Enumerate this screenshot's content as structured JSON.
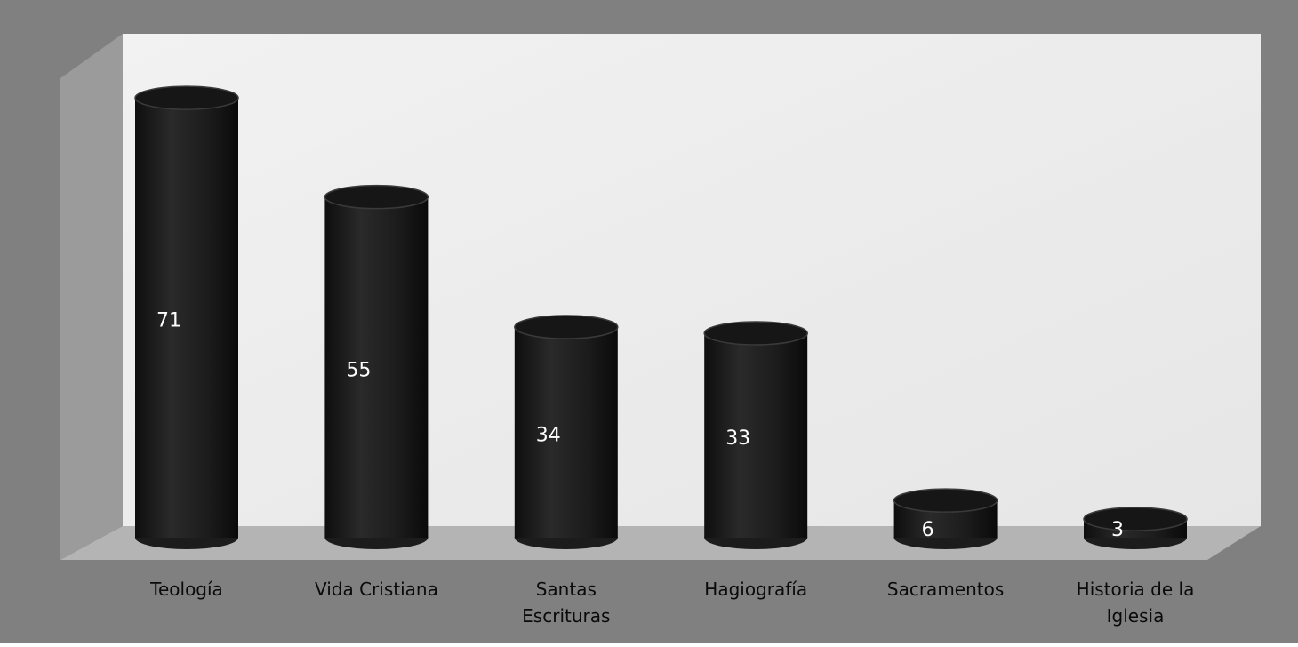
{
  "colors": {
    "frame": "#808080",
    "back_wall": "#ededed",
    "left_wall": "#9b9b9b",
    "floor": "#b4b4b4",
    "bar": "#1c1c1c",
    "bar_top": "#161616",
    "value_label": "#ffffff",
    "category_label": "#0a0a0a"
  },
  "chart_data": {
    "type": "bar",
    "style": "3d-cylinder",
    "title": "",
    "xlabel": "",
    "ylabel": "",
    "ylim": [
      0,
      80
    ],
    "grid": false,
    "legend": "none",
    "categories": [
      [
        "Teología"
      ],
      [
        "Vida Cristiana"
      ],
      [
        "Santas",
        "Escrituras"
      ],
      [
        "Hagiografía"
      ],
      [
        "Sacramentos"
      ],
      [
        "Historia de la",
        "Iglesia"
      ]
    ],
    "values": [
      71,
      55,
      34,
      33,
      6,
      3
    ],
    "data_labels": [
      "71",
      "55",
      "34",
      "33",
      "6",
      "3"
    ]
  }
}
